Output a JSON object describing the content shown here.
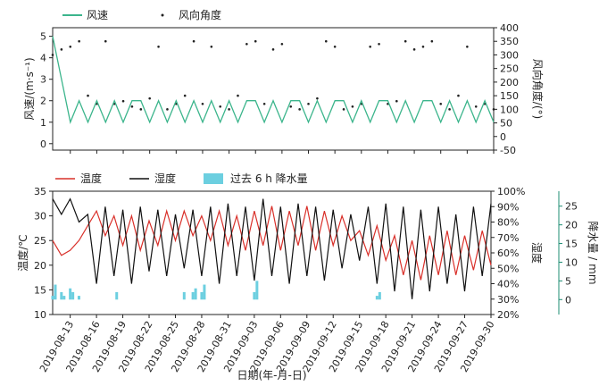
{
  "chart_data": [
    {
      "type": "line",
      "x_start": "2019-08-11",
      "x_end": "2019-09-30",
      "legend": [
        {
          "name": "风速",
          "color": "#3cb58c"
        },
        {
          "name": "风向角度",
          "color": "#222222"
        }
      ],
      "y_left": {
        "label": "风速/(m·s⁻¹)",
        "range": [
          -0.3,
          5.4
        ],
        "ticks": [
          0,
          1,
          2,
          3,
          4,
          5
        ]
      },
      "y_right": {
        "label": "风向角度/(°)",
        "range": [
          -50,
          400
        ],
        "ticks": [
          -50,
          0,
          50,
          100,
          150,
          200,
          250,
          300,
          350,
          400
        ]
      },
      "series": [
        {
          "name": "风速",
          "color": "#3cb58c",
          "points": [
            [
              "2019-08-11",
              5.0
            ],
            [
              "2019-08-12",
              3.0
            ],
            [
              "2019-08-13",
              1.0
            ],
            [
              "2019-08-14",
              2.0
            ],
            [
              "2019-08-15",
              1.0
            ],
            [
              "2019-08-16",
              2.0
            ],
            [
              "2019-08-17",
              1.0
            ],
            [
              "2019-08-18",
              2.0
            ],
            [
              "2019-08-19",
              1.0
            ],
            [
              "2019-08-20",
              2.0
            ],
            [
              "2019-08-21",
              2.0
            ],
            [
              "2019-08-22",
              1.0
            ],
            [
              "2019-08-23",
              2.0
            ],
            [
              "2019-08-24",
              1.0
            ],
            [
              "2019-08-25",
              2.0
            ],
            [
              "2019-08-26",
              1.0
            ],
            [
              "2019-08-27",
              2.0
            ],
            [
              "2019-08-28",
              1.0
            ],
            [
              "2019-08-29",
              2.0
            ],
            [
              "2019-08-30",
              1.0
            ],
            [
              "2019-08-31",
              2.0
            ],
            [
              "2019-09-01",
              1.0
            ],
            [
              "2019-09-02",
              2.0
            ],
            [
              "2019-09-03",
              2.0
            ],
            [
              "2019-09-04",
              1.0
            ],
            [
              "2019-09-05",
              2.0
            ],
            [
              "2019-09-06",
              1.0
            ],
            [
              "2019-09-07",
              2.0
            ],
            [
              "2019-09-08",
              2.0
            ],
            [
              "2019-09-09",
              1.0
            ],
            [
              "2019-09-10",
              2.0
            ],
            [
              "2019-09-11",
              1.0
            ],
            [
              "2019-09-12",
              2.0
            ],
            [
              "2019-09-13",
              2.0
            ],
            [
              "2019-09-14",
              1.0
            ],
            [
              "2019-09-15",
              2.0
            ],
            [
              "2019-09-16",
              1.0
            ],
            [
              "2019-09-17",
              2.0
            ],
            [
              "2019-09-18",
              2.0
            ],
            [
              "2019-09-19",
              1.0
            ],
            [
              "2019-09-20",
              2.0
            ],
            [
              "2019-09-21",
              1.0
            ],
            [
              "2019-09-22",
              2.0
            ],
            [
              "2019-09-23",
              2.0
            ],
            [
              "2019-09-24",
              1.0
            ],
            [
              "2019-09-25",
              2.0
            ],
            [
              "2019-09-26",
              1.0
            ],
            [
              "2019-09-27",
              2.0
            ],
            [
              "2019-09-28",
              1.0
            ],
            [
              "2019-09-29",
              2.0
            ],
            [
              "2019-09-30",
              1.0
            ]
          ]
        },
        {
          "name": "风向角度",
          "color": "#222222",
          "points": [
            [
              "2019-08-11",
              300
            ],
            [
              "2019-08-12",
              320
            ],
            [
              "2019-08-13",
              330
            ],
            [
              "2019-08-14",
              350
            ],
            [
              "2019-08-15",
              150
            ],
            [
              "2019-08-16",
              120
            ],
            [
              "2019-08-17",
              350
            ],
            [
              "2019-08-18",
              120
            ],
            [
              "2019-08-19",
              130
            ],
            [
              "2019-08-20",
              110
            ],
            [
              "2019-08-21",
              100
            ],
            [
              "2019-08-22",
              140
            ],
            [
              "2019-08-23",
              330
            ],
            [
              "2019-08-24",
              100
            ],
            [
              "2019-08-25",
              120
            ],
            [
              "2019-08-26",
              150
            ],
            [
              "2019-08-27",
              350
            ],
            [
              "2019-08-28",
              120
            ],
            [
              "2019-08-29",
              330
            ],
            [
              "2019-08-30",
              110
            ],
            [
              "2019-08-31",
              100
            ],
            [
              "2019-09-01",
              150
            ],
            [
              "2019-09-02",
              340
            ],
            [
              "2019-09-03",
              350
            ],
            [
              "2019-09-04",
              120
            ],
            [
              "2019-09-05",
              320
            ],
            [
              "2019-09-06",
              340
            ],
            [
              "2019-09-07",
              110
            ],
            [
              "2019-09-08",
              100
            ],
            [
              "2019-09-09",
              120
            ],
            [
              "2019-09-10",
              140
            ],
            [
              "2019-09-11",
              350
            ],
            [
              "2019-09-12",
              330
            ],
            [
              "2019-09-13",
              100
            ],
            [
              "2019-09-14",
              110
            ],
            [
              "2019-09-15",
              120
            ],
            [
              "2019-09-16",
              330
            ],
            [
              "2019-09-17",
              340
            ],
            [
              "2019-09-18",
              120
            ],
            [
              "2019-09-19",
              130
            ],
            [
              "2019-09-20",
              350
            ],
            [
              "2019-09-21",
              320
            ],
            [
              "2019-09-22",
              330
            ],
            [
              "2019-09-23",
              350
            ],
            [
              "2019-09-24",
              120
            ],
            [
              "2019-09-25",
              100
            ],
            [
              "2019-09-26",
              150
            ],
            [
              "2019-09-27",
              330
            ],
            [
              "2019-09-28",
              110
            ],
            [
              "2019-09-29",
              120
            ],
            [
              "2019-09-30",
              100
            ]
          ]
        }
      ]
    },
    {
      "type": "line",
      "x_start": "2019-08-11",
      "x_end": "2019-09-30",
      "xlabel": "日期(年-月-日)",
      "x_tick_labels": [
        "2019-08-13",
        "2019-08-16",
        "2019-08-19",
        "2019-08-22",
        "2019-08-25",
        "2019-08-28",
        "2019-08-31",
        "2019-09-03",
        "2019-09-06",
        "2019-09-09",
        "2019-09-12",
        "2019-09-15",
        "2019-09-18",
        "2019-09-21",
        "2019-09-24",
        "2019-09-27",
        "2019-09-30"
      ],
      "legend": [
        {
          "name": "温度",
          "color": "#d9302a"
        },
        {
          "name": "湿度",
          "color": "#111111"
        },
        {
          "name": "过去 6 h 降水量",
          "color": "#6ccfe0"
        }
      ],
      "y_axes": [
        {
          "label": "温度/℃",
          "range": [
            10,
            35
          ],
          "ticks": [
            10,
            15,
            20,
            25,
            30,
            35
          ]
        },
        {
          "label": "湿度",
          "range": [
            20,
            100
          ],
          "ticks": [
            "20%",
            "30%",
            "40%",
            "50%",
            "60%",
            "70%",
            "80%",
            "90%",
            "100%"
          ]
        },
        {
          "label": "降水量 / mm",
          "range": [
            -4,
            29
          ],
          "ticks": [
            0,
            5,
            10,
            15,
            20,
            25
          ],
          "color": "#1e8c73"
        }
      ],
      "series": [
        {
          "name": "温度",
          "color": "#d9302a",
          "points": [
            [
              "2019-08-11",
              25
            ],
            [
              "2019-08-12",
              22
            ],
            [
              "2019-08-13",
              23
            ],
            [
              "2019-08-14",
              25
            ],
            [
              "2019-08-15",
              28
            ],
            [
              "2019-08-16",
              31
            ],
            [
              "2019-08-17",
              26
            ],
            [
              "2019-08-18",
              30
            ],
            [
              "2019-08-19",
              24
            ],
            [
              "2019-08-20",
              30
            ],
            [
              "2019-08-21",
              23
            ],
            [
              "2019-08-22",
              29
            ],
            [
              "2019-08-23",
              24
            ],
            [
              "2019-08-24",
              31
            ],
            [
              "2019-08-25",
              25
            ],
            [
              "2019-08-26",
              31
            ],
            [
              "2019-08-27",
              26
            ],
            [
              "2019-08-28",
              30
            ],
            [
              "2019-08-29",
              25
            ],
            [
              "2019-08-30",
              31
            ],
            [
              "2019-08-31",
              24
            ],
            [
              "2019-09-01",
              30
            ],
            [
              "2019-09-02",
              23
            ],
            [
              "2019-09-03",
              31
            ],
            [
              "2019-09-04",
              24
            ],
            [
              "2019-09-05",
              32
            ],
            [
              "2019-09-06",
              23
            ],
            [
              "2019-09-07",
              31
            ],
            [
              "2019-09-08",
              24
            ],
            [
              "2019-09-09",
              32
            ],
            [
              "2019-09-10",
              23
            ],
            [
              "2019-09-11",
              31
            ],
            [
              "2019-09-12",
              24
            ],
            [
              "2019-09-13",
              30
            ],
            [
              "2019-09-14",
              25
            ],
            [
              "2019-09-15",
              27
            ],
            [
              "2019-09-16",
              22
            ],
            [
              "2019-09-17",
              28
            ],
            [
              "2019-09-18",
              21
            ],
            [
              "2019-09-19",
              26
            ],
            [
              "2019-09-20",
              18
            ],
            [
              "2019-09-21",
              25
            ],
            [
              "2019-09-22",
              17
            ],
            [
              "2019-09-23",
              26
            ],
            [
              "2019-09-24",
              18
            ],
            [
              "2019-09-25",
              27
            ],
            [
              "2019-09-26",
              18
            ],
            [
              "2019-09-27",
              26
            ],
            [
              "2019-09-28",
              19
            ],
            [
              "2019-09-29",
              27
            ],
            [
              "2019-09-30",
              20
            ]
          ]
        },
        {
          "name": "湿度",
          "color": "#111111",
          "points": [
            [
              "2019-08-11",
              95
            ],
            [
              "2019-08-12",
              85
            ],
            [
              "2019-08-13",
              95
            ],
            [
              "2019-08-14",
              80
            ],
            [
              "2019-08-15",
              85
            ],
            [
              "2019-08-16",
              40
            ],
            [
              "2019-08-17",
              90
            ],
            [
              "2019-08-18",
              45
            ],
            [
              "2019-08-19",
              88
            ],
            [
              "2019-08-20",
              40
            ],
            [
              "2019-08-21",
              90
            ],
            [
              "2019-08-22",
              48
            ],
            [
              "2019-08-23",
              88
            ],
            [
              "2019-08-24",
              45
            ],
            [
              "2019-08-25",
              85
            ],
            [
              "2019-08-26",
              50
            ],
            [
              "2019-08-27",
              88
            ],
            [
              "2019-08-28",
              45
            ],
            [
              "2019-08-29",
              90
            ],
            [
              "2019-08-30",
              40
            ],
            [
              "2019-08-31",
              92
            ],
            [
              "2019-09-01",
              45
            ],
            [
              "2019-09-02",
              90
            ],
            [
              "2019-09-03",
              42
            ],
            [
              "2019-09-04",
              95
            ],
            [
              "2019-09-05",
              45
            ],
            [
              "2019-09-06",
              90
            ],
            [
              "2019-09-07",
              40
            ],
            [
              "2019-09-08",
              92
            ],
            [
              "2019-09-09",
              45
            ],
            [
              "2019-09-10",
              90
            ],
            [
              "2019-09-11",
              42
            ],
            [
              "2019-09-12",
              88
            ],
            [
              "2019-09-13",
              50
            ],
            [
              "2019-09-14",
              85
            ],
            [
              "2019-09-15",
              55
            ],
            [
              "2019-09-16",
              90
            ],
            [
              "2019-09-17",
              40
            ],
            [
              "2019-09-18",
              92
            ],
            [
              "2019-09-19",
              35
            ],
            [
              "2019-09-20",
              90
            ],
            [
              "2019-09-21",
              30
            ],
            [
              "2019-09-22",
              88
            ],
            [
              "2019-09-23",
              35
            ],
            [
              "2019-09-24",
              90
            ],
            [
              "2019-09-25",
              40
            ],
            [
              "2019-09-26",
              85
            ],
            [
              "2019-09-27",
              35
            ],
            [
              "2019-09-28",
              90
            ],
            [
              "2019-09-29",
              45
            ],
            [
              "2019-09-30",
              92
            ]
          ]
        },
        {
          "name": "过去 6 h 降水量",
          "color": "#6ccfe0",
          "type": "bar",
          "points": [
            [
              "2019-08-11",
              1
            ],
            [
              "2019-08-11",
              4
            ],
            [
              "2019-08-12",
              2
            ],
            [
              "2019-08-12",
              1
            ],
            [
              "2019-08-13",
              3
            ],
            [
              "2019-08-13",
              2
            ],
            [
              "2019-08-14",
              1
            ],
            [
              "2019-08-18",
              2
            ],
            [
              "2019-08-26",
              2
            ],
            [
              "2019-08-27",
              3
            ],
            [
              "2019-08-27",
              2
            ],
            [
              "2019-08-28",
              4
            ],
            [
              "2019-08-28",
              2
            ],
            [
              "2019-09-03",
              5
            ],
            [
              "2019-09-03",
              2
            ],
            [
              "2019-09-17",
              2
            ],
            [
              "2019-09-17",
              1
            ]
          ]
        }
      ]
    }
  ]
}
